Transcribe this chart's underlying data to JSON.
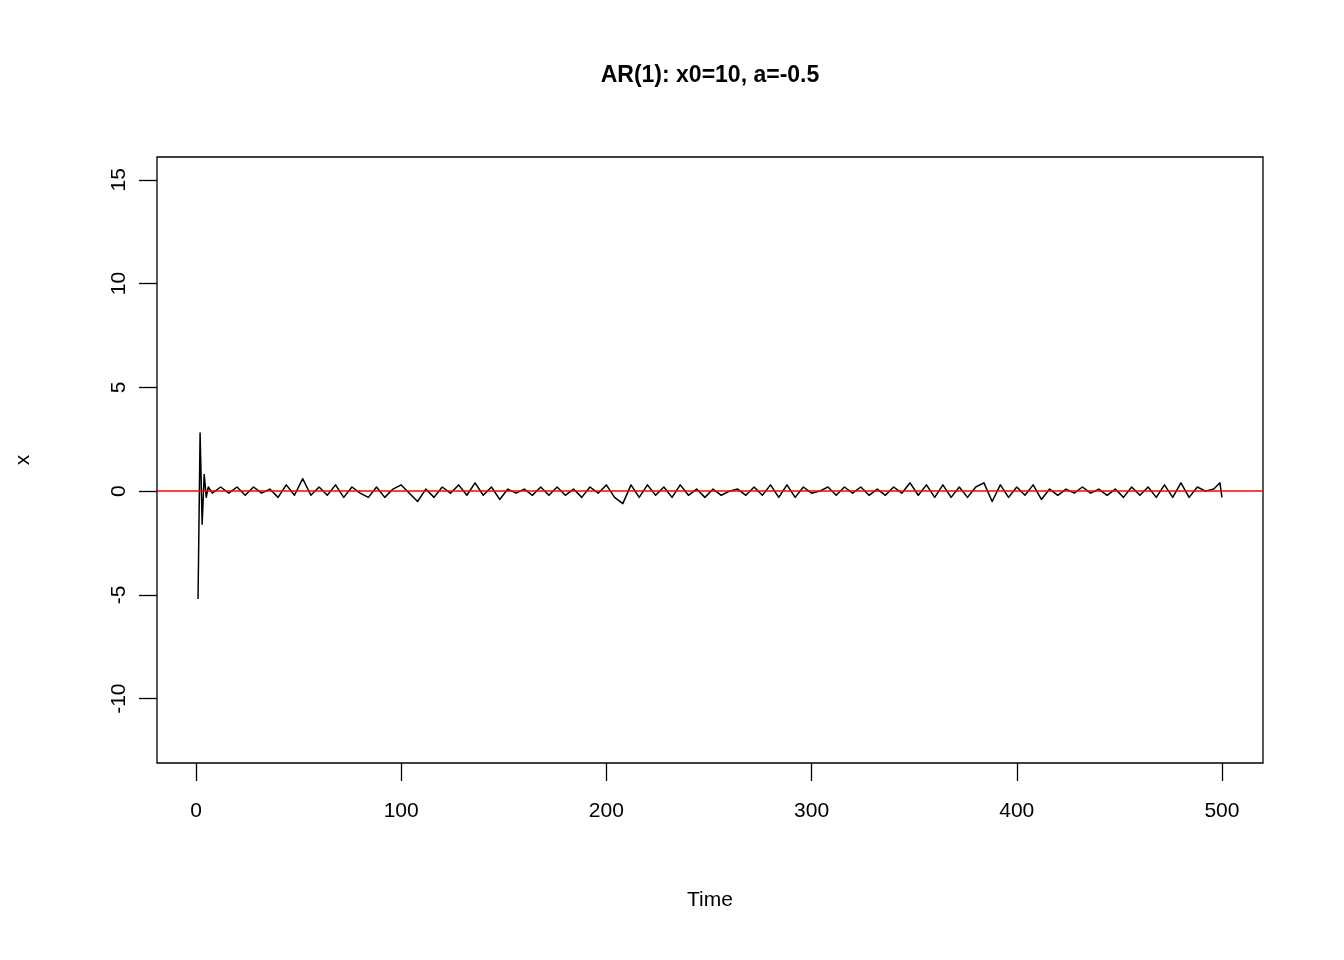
{
  "chart_data": {
    "type": "line",
    "title": "AR(1): x0=10, a=-0.5",
    "xlabel": "Time",
    "ylabel": "x",
    "xlim": [
      -19,
      520
    ],
    "ylim": [
      -13.1,
      16.1
    ],
    "xticks": [
      0,
      100,
      200,
      300,
      400,
      500
    ],
    "yticks": [
      -10,
      -5,
      0,
      5,
      10,
      15
    ],
    "grid": false,
    "marker": "none",
    "line_style": "solid",
    "series": [
      {
        "color": "#000000",
        "x": [
          1,
          2,
          3,
          4,
          5,
          6,
          8,
          12,
          16,
          20,
          24,
          28,
          32,
          36,
          40,
          44,
          48,
          52,
          56,
          60,
          64,
          68,
          72,
          76,
          80,
          84,
          88,
          92,
          96,
          100,
          104,
          108,
          112,
          116,
          120,
          124,
          128,
          132,
          136,
          140,
          144,
          148,
          152,
          156,
          160,
          164,
          168,
          172,
          176,
          180,
          184,
          188,
          192,
          196,
          200,
          204,
          208,
          212,
          216,
          220,
          224,
          228,
          232,
          236,
          240,
          244,
          248,
          252,
          256,
          260,
          264,
          268,
          272,
          276,
          280,
          284,
          288,
          292,
          296,
          300,
          304,
          308,
          312,
          316,
          320,
          324,
          328,
          332,
          336,
          340,
          344,
          348,
          352,
          356,
          360,
          364,
          368,
          372,
          376,
          380,
          384,
          388,
          392,
          396,
          400,
          404,
          408,
          412,
          416,
          420,
          424,
          428,
          432,
          436,
          440,
          444,
          448,
          452,
          456,
          460,
          464,
          468,
          472,
          476,
          480,
          484,
          488,
          492,
          496,
          499,
          500
        ],
        "values": [
          -5.2,
          2.8,
          -1.6,
          0.8,
          -0.3,
          0.2,
          -0.1,
          0.2,
          -0.1,
          0.2,
          -0.2,
          0.2,
          -0.1,
          0.1,
          -0.3,
          0.3,
          -0.2,
          0.6,
          -0.2,
          0.2,
          -0.2,
          0.3,
          -0.3,
          0.2,
          -0.1,
          -0.3,
          0.2,
          -0.3,
          0.1,
          0.3,
          -0.1,
          -0.5,
          0.1,
          -0.3,
          0.2,
          -0.1,
          0.3,
          -0.2,
          0.4,
          -0.2,
          0.2,
          -0.4,
          0.1,
          -0.1,
          0.1,
          -0.2,
          0.2,
          -0.2,
          0.2,
          -0.2,
          0.1,
          -0.3,
          0.2,
          -0.1,
          0.3,
          -0.3,
          -0.6,
          0.3,
          -0.3,
          0.3,
          -0.2,
          0.2,
          -0.3,
          0.3,
          -0.2,
          0.1,
          -0.3,
          0.1,
          -0.2,
          0.0,
          0.1,
          -0.2,
          0.2,
          -0.2,
          0.3,
          -0.3,
          0.3,
          -0.3,
          0.2,
          -0.1,
          0.0,
          0.2,
          -0.2,
          0.2,
          -0.1,
          0.2,
          -0.2,
          0.1,
          -0.2,
          0.2,
          -0.1,
          0.4,
          -0.2,
          0.3,
          -0.3,
          0.3,
          -0.3,
          0.2,
          -0.3,
          0.2,
          0.4,
          -0.5,
          0.3,
          -0.3,
          0.2,
          -0.2,
          0.3,
          -0.4,
          0.1,
          -0.2,
          0.1,
          -0.1,
          0.2,
          -0.1,
          0.1,
          -0.2,
          0.1,
          -0.3,
          0.2,
          -0.2,
          0.2,
          -0.3,
          0.3,
          -0.3,
          0.4,
          -0.3,
          0.2,
          0.0,
          0.1,
          0.4,
          -0.3
        ]
      }
    ],
    "ref_lines": [
      {
        "axis": "y",
        "value": 0,
        "color": "#ff0000",
        "line_style": "solid"
      }
    ]
  }
}
